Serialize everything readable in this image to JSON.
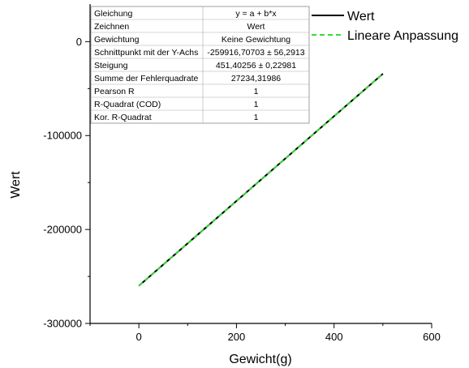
{
  "chart_data": {
    "type": "line",
    "title": "",
    "xlabel": "Gewicht(g)",
    "ylabel": "Wert",
    "xlim": [
      -100,
      600
    ],
    "ylim": [
      -300000,
      40000
    ],
    "xticks": [
      0,
      200,
      400,
      600
    ],
    "yticks": [
      0,
      -100000,
      -200000,
      -300000
    ],
    "xtick_labels": [
      "0",
      "200",
      "400",
      "600"
    ],
    "ytick_labels": [
      "0",
      "-100000",
      "-200000",
      "-300000"
    ],
    "grid": false,
    "legend": {
      "position": "top-right outside"
    },
    "series": [
      {
        "name": "Wert",
        "color": "#000000",
        "style": "solid",
        "x": [
          0,
          500
        ],
        "y": [
          -259917,
          -34214
        ]
      },
      {
        "name": "Lineare Anpassung",
        "color": "#33dd33",
        "style": "dashed",
        "x": [
          0,
          500
        ],
        "y": [
          -259917,
          -34214
        ]
      }
    ],
    "stats_table": [
      [
        "Gleichung",
        "y = a + b*x"
      ],
      [
        "Zeichnen",
        "Wert"
      ],
      [
        "Gewichtung",
        "Keine Gewichtung"
      ],
      [
        "Schnittpunkt mit der Y-Achs",
        "-259916,70703 ± 56,2913"
      ],
      [
        "Steigung",
        "451,40256 ± 0,22981"
      ],
      [
        "Summe der Fehlerquadrate",
        "27234,31986"
      ],
      [
        "Pearson R",
        "1"
      ],
      [
        "R-Quadrat (COD)",
        "1"
      ],
      [
        "Kor. R-Quadrat",
        "1"
      ]
    ]
  }
}
